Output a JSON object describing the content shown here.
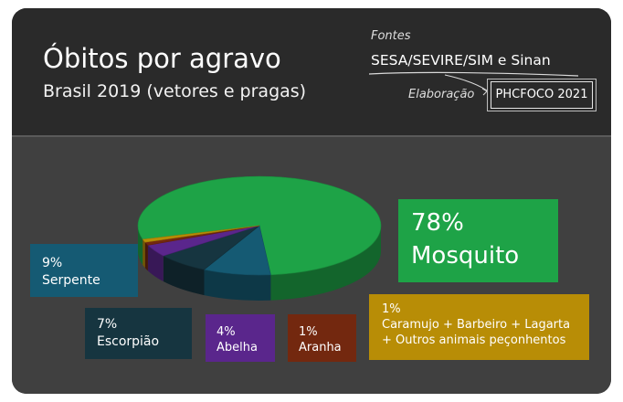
{
  "header": {
    "title": "Óbitos por agravo",
    "subtitle": "Brasil 2019 (vetores e pragas)",
    "sources_label": "Fontes",
    "sources": "SESA/SEVIRE/SIM e Sinan",
    "credit_label": "Elaboração",
    "credit": "PHCFOCO 2021"
  },
  "colors": {
    "mosquito": "#1ea347",
    "serpente": "#155a73",
    "escorpiao": "#163540",
    "abelha": "#5a268c",
    "aranha": "#73280f",
    "outros": "#b88d06"
  },
  "chart_data": {
    "type": "pie",
    "title": "Óbitos por agravo",
    "subtitle": "Brasil 2019 (vetores e pragas)",
    "slices": [
      {
        "label": "Mosquito",
        "value": 78,
        "pct_label": "78%",
        "color": "#1ea347"
      },
      {
        "label": "Serpente",
        "value": 9,
        "pct_label": "9%",
        "color": "#155a73"
      },
      {
        "label": "Escorpião",
        "value": 7,
        "pct_label": "7%",
        "color": "#163540"
      },
      {
        "label": "Abelha",
        "value": 4,
        "pct_label": "4%",
        "color": "#5a268c"
      },
      {
        "label": "Aranha",
        "value": 1,
        "pct_label": "1%",
        "color": "#73280f"
      },
      {
        "label": "Caramujo + Barbeiro + Lagarta + Outros animais peçonhentos",
        "value": 1,
        "pct_label": "1%",
        "color": "#b88d06"
      }
    ]
  },
  "labels": {
    "mosquito": {
      "pct": "78%",
      "name": "Mosquito"
    },
    "serpente": {
      "pct": "9%",
      "name": "Serpente"
    },
    "escorpiao": {
      "pct": "7%",
      "name": "Escorpião"
    },
    "abelha": {
      "pct": "4%",
      "name": "Abelha"
    },
    "aranha": {
      "pct": "1%",
      "name": "Aranha"
    },
    "outros": {
      "pct": "1%",
      "line1": "Caramujo + Barbeiro + Lagarta",
      "line2": "+ Outros animais peçonhentos"
    }
  }
}
